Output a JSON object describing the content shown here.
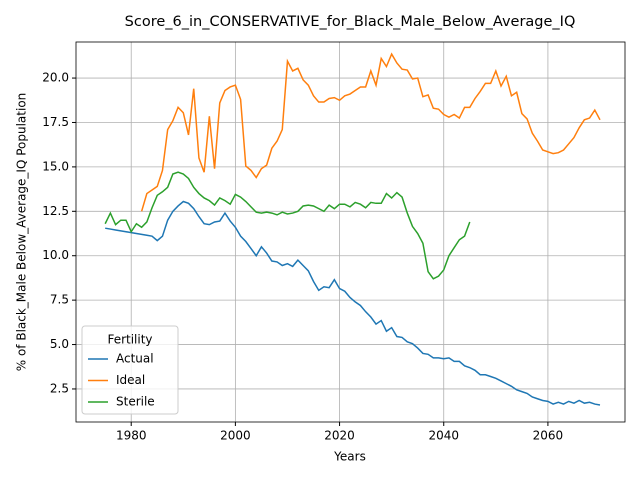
{
  "chart_data": {
    "type": "line",
    "title": "Score_6_in_CONSERVATIVE_for_Black_Male_Below_Average_IQ",
    "xlabel": "Years",
    "ylabel": "% of Black_Male Below_Average_IQ Population",
    "legend_title": "Fertility",
    "legend_loc": "lower left",
    "grid": true,
    "xlim": [
      1969.4,
      2074.8
    ],
    "ylim": [
      0.64,
      22.03
    ],
    "xticks": [
      1980,
      2000,
      2020,
      2040,
      2060
    ],
    "yticks": [
      2.5,
      {
        "value": 5,
        "label": "5.0"
      },
      7.5,
      {
        "value": 10,
        "label": "10.0"
      },
      12.5,
      {
        "value": 15,
        "label": "15.0"
      },
      17.5,
      {
        "value": 20,
        "label": "20.0"
      }
    ],
    "x": [
      1975,
      1976,
      1977,
      1978,
      1979,
      1980,
      1981,
      1982,
      1983,
      1984,
      1985,
      1986,
      1987,
      1988,
      1989,
      1990,
      1991,
      1992,
      1993,
      1994,
      1995,
      1996,
      1997,
      1998,
      1999,
      2000,
      2001,
      2002,
      2003,
      2004,
      2005,
      2006,
      2007,
      2008,
      2009,
      2010,
      2011,
      2012,
      2013,
      2014,
      2015,
      2016,
      2017,
      2018,
      2019,
      2020,
      2021,
      2022,
      2023,
      2024,
      2025,
      2026,
      2027,
      2028,
      2029,
      2030,
      2031,
      2032,
      2033,
      2034,
      2035,
      2036,
      2037,
      2038,
      2039,
      2040,
      2041,
      2042,
      2043,
      2044,
      2045,
      2046,
      2047,
      2048,
      2049,
      2050,
      2051,
      2052,
      2053,
      2054,
      2055,
      2056,
      2057,
      2058,
      2059,
      2060,
      2061,
      2062,
      2063,
      2064,
      2065,
      2066,
      2067,
      2068,
      2069,
      2070
    ],
    "series": [
      {
        "name": "Actual",
        "color": "#1f77b4",
        "values": [
          11.55,
          11.5,
          11.45,
          11.4,
          11.35,
          11.3,
          11.25,
          11.2,
          11.15,
          11.1,
          10.85,
          11.1,
          12.0,
          12.5,
          12.8,
          13.05,
          12.95,
          12.65,
          12.2,
          11.8,
          11.75,
          11.9,
          11.95,
          12.4,
          11.95,
          11.6,
          11.1,
          10.8,
          10.4,
          10.0,
          10.5,
          10.15,
          9.7,
          9.65,
          9.45,
          9.55,
          9.4,
          9.75,
          9.45,
          9.15,
          8.55,
          8.05,
          8.25,
          8.2,
          8.65,
          8.15,
          8.0,
          7.65,
          7.4,
          7.2,
          6.85,
          6.55,
          6.15,
          6.35,
          5.75,
          5.95,
          5.45,
          5.4,
          5.15,
          5.05,
          4.8,
          4.5,
          4.45,
          4.25,
          4.25,
          4.2,
          4.25,
          4.05,
          4.05,
          3.8,
          3.7,
          3.55,
          3.3,
          3.3,
          3.2,
          3.1,
          2.95,
          2.8,
          2.65,
          2.45,
          2.35,
          2.25,
          2.05,
          1.95,
          1.85,
          1.8,
          1.65,
          1.75,
          1.65,
          1.8,
          1.7,
          1.85,
          1.7,
          1.75,
          1.65,
          1.6
        ]
      },
      {
        "name": "Ideal",
        "color": "#ff7f0e",
        "values": [
          null,
          null,
          null,
          null,
          null,
          null,
          null,
          12.5,
          13.5,
          13.7,
          13.9,
          14.8,
          17.1,
          17.6,
          18.35,
          18.05,
          16.8,
          19.4,
          15.5,
          14.7,
          17.85,
          14.9,
          18.6,
          19.3,
          19.5,
          19.6,
          18.8,
          15.05,
          14.8,
          14.4,
          14.9,
          15.1,
          16.05,
          16.45,
          17.1,
          20.95,
          20.4,
          20.55,
          19.9,
          19.6,
          19.0,
          18.65,
          18.65,
          18.85,
          18.9,
          18.75,
          19.0,
          19.1,
          19.3,
          19.5,
          19.5,
          20.4,
          19.6,
          21.1,
          20.65,
          21.35,
          20.85,
          20.5,
          20.45,
          19.95,
          20.0,
          18.95,
          19.05,
          18.3,
          18.25,
          17.95,
          17.8,
          17.95,
          17.75,
          18.35,
          18.35,
          18.85,
          19.25,
          19.7,
          19.7,
          20.4,
          19.55,
          20.1,
          19.0,
          19.2,
          18.0,
          17.7,
          16.9,
          16.45,
          15.95,
          15.85,
          15.75,
          15.8,
          15.95,
          16.3,
          16.65,
          17.2,
          17.65,
          17.75,
          18.2,
          17.65
        ]
      },
      {
        "name": "Sterile",
        "color": "#2ca02c",
        "values": [
          11.8,
          12.4,
          11.75,
          12.0,
          12.0,
          11.35,
          11.8,
          11.6,
          11.9,
          12.7,
          13.4,
          13.6,
          13.85,
          14.6,
          14.7,
          14.6,
          14.35,
          13.85,
          13.5,
          13.25,
          13.1,
          12.85,
          13.25,
          13.1,
          12.9,
          13.45,
          13.3,
          13.05,
          12.75,
          12.45,
          12.4,
          12.45,
          12.4,
          12.3,
          12.45,
          12.35,
          12.4,
          12.5,
          12.8,
          12.85,
          12.8,
          12.65,
          12.5,
          12.85,
          12.65,
          12.9,
          12.9,
          12.75,
          13.0,
          12.9,
          12.7,
          13.0,
          12.95,
          12.95,
          13.5,
          13.25,
          13.55,
          13.3,
          12.4,
          11.65,
          11.25,
          10.7,
          9.1,
          8.7,
          8.85,
          9.2,
          10.0,
          10.45,
          10.9,
          11.1,
          11.9,
          null,
          null,
          null,
          null,
          null,
          null,
          null,
          null,
          null,
          null,
          null,
          null,
          null,
          null,
          null,
          null,
          null,
          null,
          null,
          null,
          null,
          null,
          null,
          null,
          null
        ]
      }
    ]
  }
}
